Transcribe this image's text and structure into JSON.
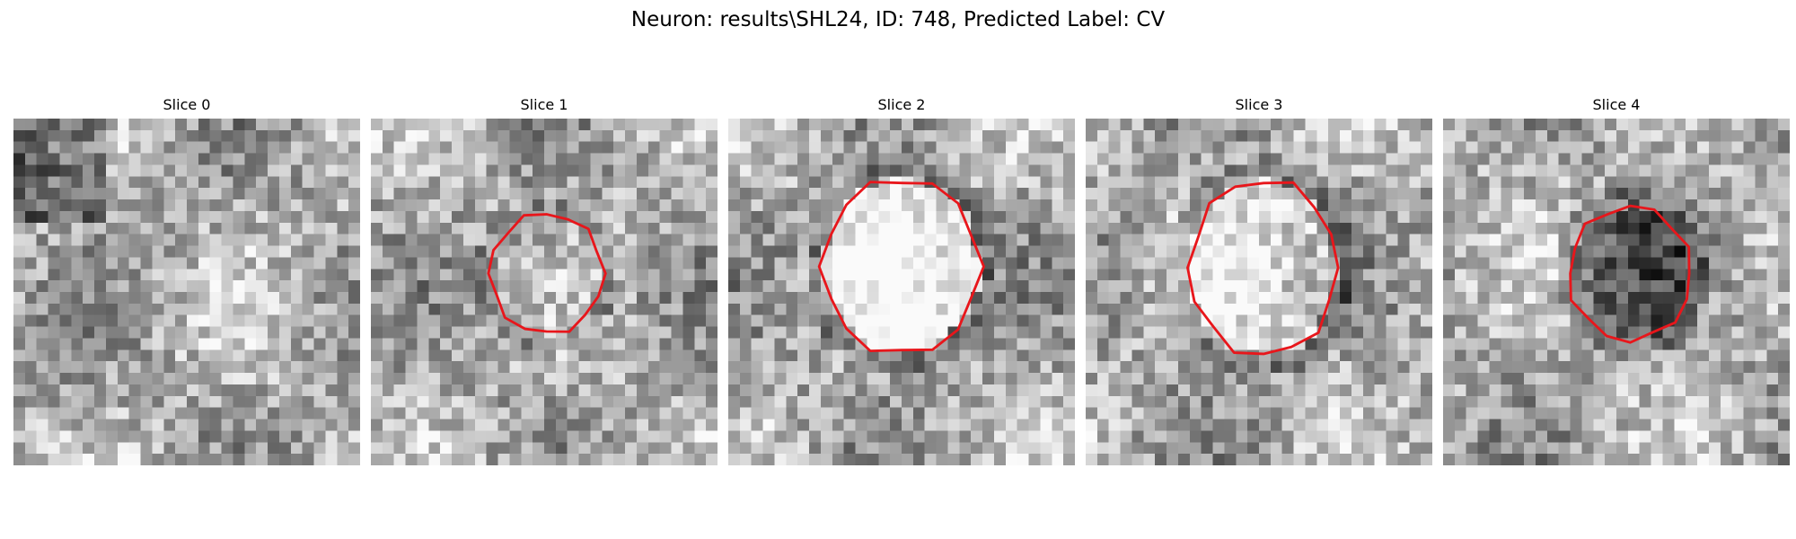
{
  "figure": {
    "title": "Neuron: results\\SHL24, ID: 748, Predicted Label: CV"
  },
  "slices": [
    {
      "title": "Slice 0",
      "has_contour": false,
      "texture_seed": 11,
      "center_brightness": 0.0
    },
    {
      "title": "Slice 1",
      "has_contour": true,
      "texture_seed": 23,
      "center_brightness": -0.05
    },
    {
      "title": "Slice 2",
      "has_contour": true,
      "texture_seed": 37,
      "center_brightness": 0.25
    },
    {
      "title": "Slice 3",
      "has_contour": true,
      "texture_seed": 51,
      "center_brightness": 0.18
    },
    {
      "title": "Slice 4",
      "has_contour": true,
      "texture_seed": 67,
      "center_brightness": -0.28
    }
  ],
  "colors": {
    "contour": "#e8161b",
    "background": "#ffffff"
  }
}
